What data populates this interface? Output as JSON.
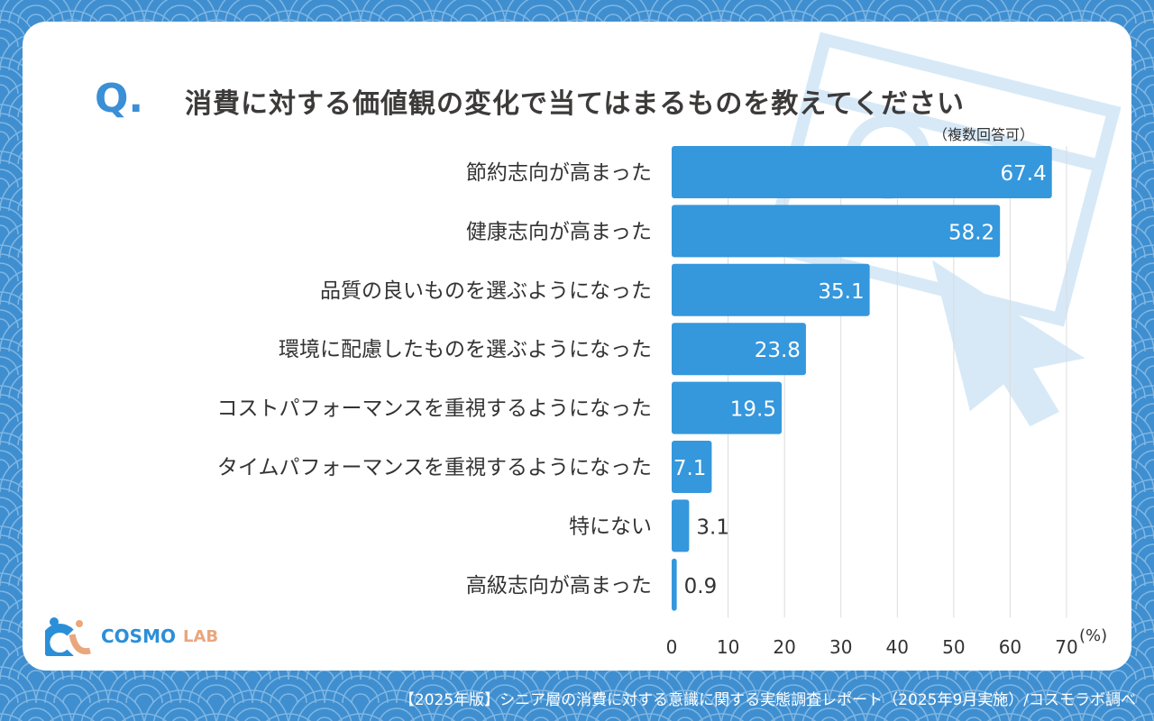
{
  "title_prefix": "Q.",
  "footer": "【2025年版】シニア層の消費に対する意識に関する実態調査レポート（2025年9月実施）/コスモラボ調べ",
  "logo": {
    "text1": "COSMO",
    "text2": "LAB"
  },
  "colors": {
    "bar": "#3597dc",
    "background": "#3f8fd0",
    "title": "#3a8fd6"
  },
  "chart_data": {
    "type": "bar",
    "orientation": "horizontal",
    "title": "消費に対する価値観の変化で当てはまるものを教えてください",
    "note": "（複数回答可）",
    "unit": "(%)",
    "categories": [
      "節約志向が高まった",
      "健康志向が高まった",
      "品質の良いものを選ぶようになった",
      "環境に配慮したものを選ぶようになった",
      "コストパフォーマンスを重視するようになった",
      "タイムパフォーマンスを重視するようになった",
      "特にない",
      "高級志向が高まった"
    ],
    "values": [
      67.4,
      58.2,
      35.1,
      23.8,
      19.5,
      7.1,
      3.1,
      0.9
    ],
    "value_labels": [
      "67.4",
      "58.2",
      "35.1",
      "23.8",
      "19.5",
      "7.1",
      "3.1",
      "0.9"
    ],
    "xlim": [
      0,
      70
    ],
    "ticks": [
      "0",
      "10",
      "20",
      "30",
      "40",
      "50",
      "60",
      "70"
    ],
    "grid": true
  }
}
